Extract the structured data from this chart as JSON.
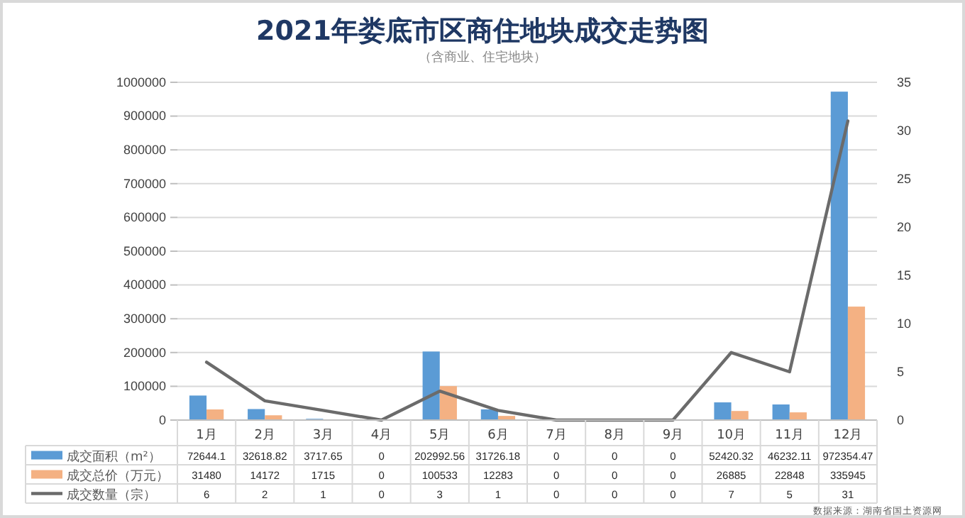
{
  "chart_data": {
    "type": "bar",
    "title": "2021年娄底市区商住地块成交走势图",
    "subtitle": "（含商业、住宅地块）",
    "categories": [
      "1月",
      "2月",
      "3月",
      "4月",
      "5月",
      "6月",
      "7月",
      "8月",
      "9月",
      "10月",
      "11月",
      "12月"
    ],
    "series": [
      {
        "name": "成交面积（m²）",
        "color": "#5b9bd5",
        "values": [
          72644.1,
          32618.82,
          3717.65,
          0,
          202992.56,
          31726.18,
          0,
          0,
          0,
          52420.32,
          46232.11,
          972354.47
        ]
      },
      {
        "name": "成交总价（万元）",
        "color": "#f4b183",
        "values": [
          31480,
          14172,
          1715,
          0,
          100533,
          12283,
          0,
          0,
          0,
          26885,
          22848,
          335945
        ]
      },
      {
        "name": "成交数量（宗）",
        "type": "line",
        "axis": "y2",
        "color": "#6b6b6b",
        "values": [
          6,
          2,
          1,
          0,
          3,
          1,
          0,
          0,
          0,
          7,
          5,
          31
        ]
      }
    ],
    "ylim": [
      0,
      1000000
    ],
    "yticks": [
      0,
      100000,
      200000,
      300000,
      400000,
      500000,
      600000,
      700000,
      800000,
      900000,
      1000000
    ],
    "y2lim": [
      0,
      35
    ],
    "y2ticks": [
      0,
      5,
      10,
      15,
      20,
      25,
      30,
      35
    ],
    "grid": "y",
    "legend": "bottom",
    "data_labels": true,
    "marker": "none",
    "line_style": "solid",
    "annotations": [
      "数据来源：湖南省国土资源网"
    ]
  }
}
